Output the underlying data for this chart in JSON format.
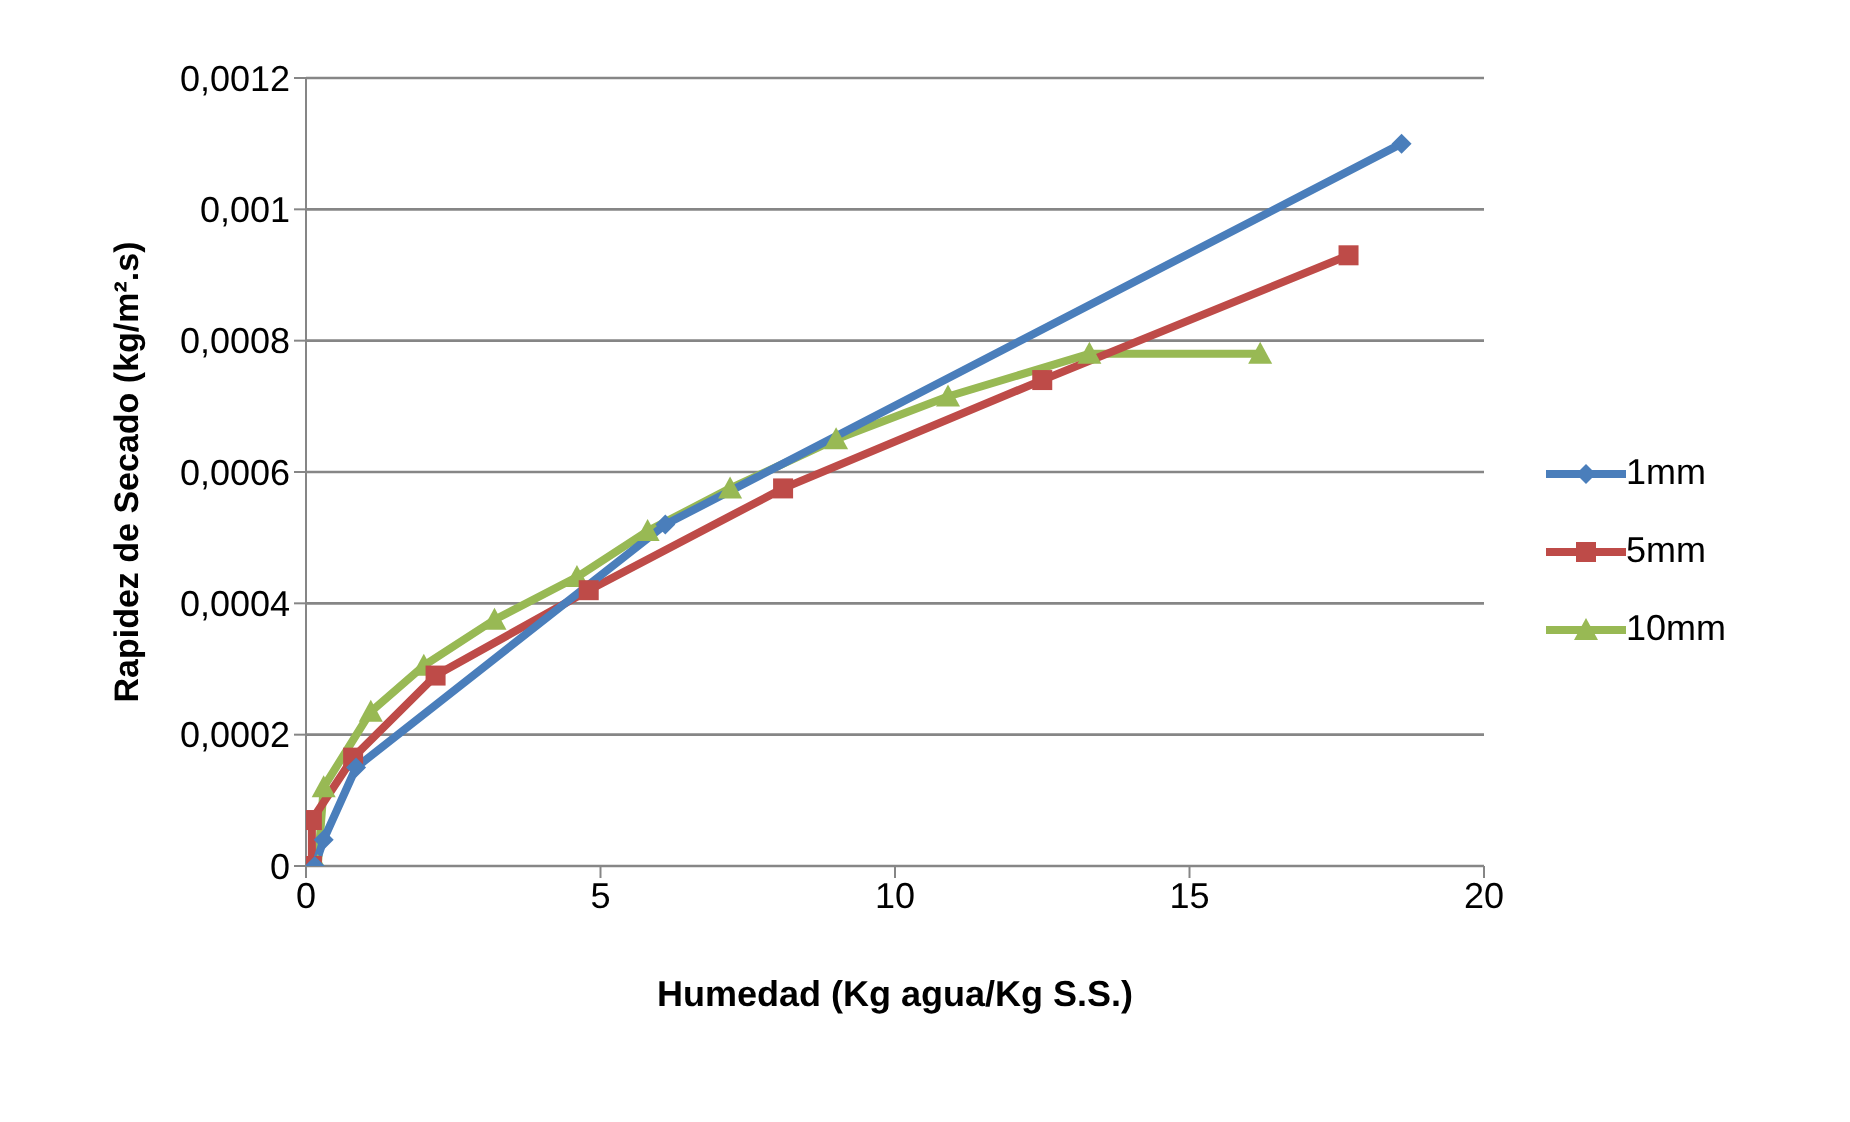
{
  "chart_data": {
    "type": "line",
    "xlabel": "Humedad (Kg agua/Kg S.S.)",
    "ylabel": "Rapidez de Secado (kg/m².s)",
    "xlim": [
      0,
      20
    ],
    "xticks": [
      0,
      5,
      10,
      15,
      20
    ],
    "ylim": [
      0,
      0.0012
    ],
    "yticks": [
      0,
      {
        "value": 0.0002,
        "label": "0,0002"
      },
      {
        "value": 0.0004,
        "label": "0,0004"
      },
      {
        "value": 0.0006,
        "label": "0,0006"
      },
      {
        "value": 0.0008,
        "label": "0,0008"
      },
      {
        "value": 0.001,
        "label": "0,001"
      },
      {
        "value": 0.0012,
        "label": "0,0012"
      }
    ],
    "grid": "y",
    "legend": "right",
    "series": [
      {
        "name": "1mm",
        "color": "#4a7ebb",
        "marker": "diamond",
        "x": [
          0.15,
          0.3,
          0.85,
          6.1,
          18.6
        ],
        "values": [
          0,
          4e-05,
          0.00015,
          0.00052,
          0.0011
        ]
      },
      {
        "name": "5mm",
        "color": "#be4b48",
        "marker": "square",
        "x": [
          0.1,
          0.1,
          0.8,
          2.2,
          4.8,
          8.1,
          12.5,
          17.7
        ],
        "values": [
          0,
          7e-05,
          0.000165,
          0.00029,
          0.00042,
          0.000575,
          0.00074,
          0.00093
        ]
      },
      {
        "name": "10mm",
        "color": "#98b954",
        "marker": "triangle",
        "x": [
          0.2,
          0.3,
          1.1,
          2.0,
          3.2,
          4.6,
          5.8,
          7.2,
          9.0,
          10.9,
          13.3,
          16.2
        ],
        "values": [
          0,
          0.00012,
          0.000235,
          0.000305,
          0.000375,
          0.00044,
          0.00051,
          0.000575,
          0.00065,
          0.000715,
          0.00078,
          0.00078
        ]
      }
    ]
  }
}
